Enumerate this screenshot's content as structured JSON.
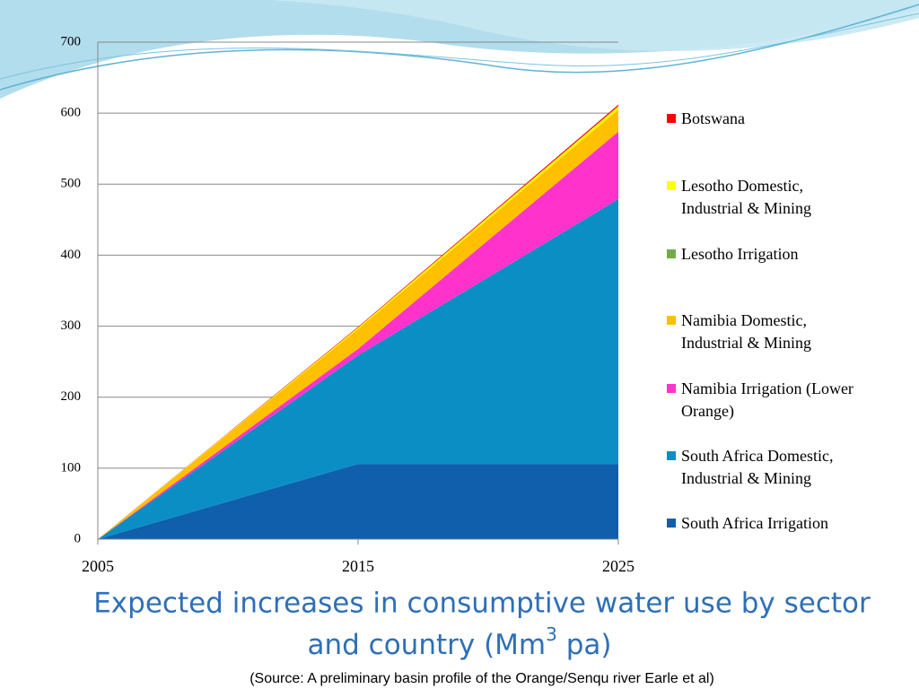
{
  "chart_data": {
    "type": "stacked_area",
    "title": [
      "Expected increases in consumptive water use by sector",
      "and country (Mm",
      "3",
      " pa)"
    ],
    "source": "(Source: A preliminary basin profile of the Orange/Senqu river  Earle et al)",
    "x": [
      2005,
      2015,
      2025
    ],
    "xlim": [
      2005,
      2025
    ],
    "xticks": [
      2005,
      2015,
      2025
    ],
    "ylim": [
      0,
      700
    ],
    "yticks": [
      0,
      100,
      200,
      300,
      400,
      500,
      600,
      700
    ],
    "grid": true,
    "legend": "right",
    "series": [
      {
        "name": "Botswana",
        "color": "#ff0000",
        "values": [
          0,
          1,
          2
        ]
      },
      {
        "name": "Lesotho Domestic, Industrial & Mining",
        "color": "#ffff00",
        "values": [
          0,
          2,
          5
        ]
      },
      {
        "name": "Lesotho Irrigation",
        "color": "#70ad47",
        "values": [
          0,
          0,
          0
        ]
      },
      {
        "name": "Namibia Domestic, Industrial & Mining",
        "color": "#ffc000",
        "values": [
          0,
          28,
          31
        ]
      },
      {
        "name": "Namibia Irrigation (Lower Orange)",
        "color": "#ff33cc",
        "values": [
          0,
          9,
          95
        ]
      },
      {
        "name": "South Africa Domestic, Industrial & Mining",
        "color": "#0b8ec4",
        "values": [
          0,
          153,
          373
        ]
      },
      {
        "name": "South Africa Irrigation",
        "color": "#0f5fad",
        "values": [
          0,
          106,
          106
        ]
      }
    ]
  }
}
